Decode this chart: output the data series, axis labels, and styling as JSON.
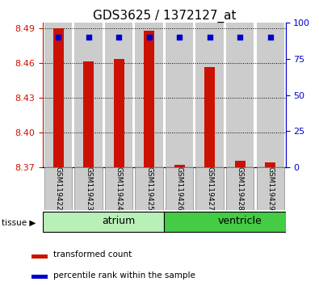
{
  "title": "GDS3625 / 1372127_at",
  "samples": [
    "GSM119422",
    "GSM119423",
    "GSM119424",
    "GSM119425",
    "GSM119426",
    "GSM119427",
    "GSM119428",
    "GSM119429"
  ],
  "transformed_count": [
    8.49,
    8.462,
    8.464,
    8.488,
    8.372,
    8.457,
    8.376,
    8.374
  ],
  "percentile_rank": [
    90,
    90,
    90,
    90,
    90,
    90,
    90,
    90
  ],
  "ymin": 8.37,
  "ymax": 8.495,
  "yticks": [
    8.37,
    8.4,
    8.43,
    8.46,
    8.49
  ],
  "right_yticks": [
    0,
    25,
    50,
    75,
    100
  ],
  "groups": [
    {
      "label": "atrium",
      "start": 0,
      "end": 4,
      "color": "#b8f0b8"
    },
    {
      "label": "ventricle",
      "start": 4,
      "end": 8,
      "color": "#44cc44"
    }
  ],
  "bar_color": "#cc1100",
  "dot_color": "#0000cc",
  "bg_color": "#cccccc",
  "plot_bg": "#ffffff",
  "title_fontsize": 11,
  "tick_color_left": "#cc1100",
  "tick_color_right": "#0000cc",
  "tick_fontsize": 8,
  "label_fontsize": 6.5,
  "group_fontsize": 9,
  "legend_fontsize": 7.5
}
